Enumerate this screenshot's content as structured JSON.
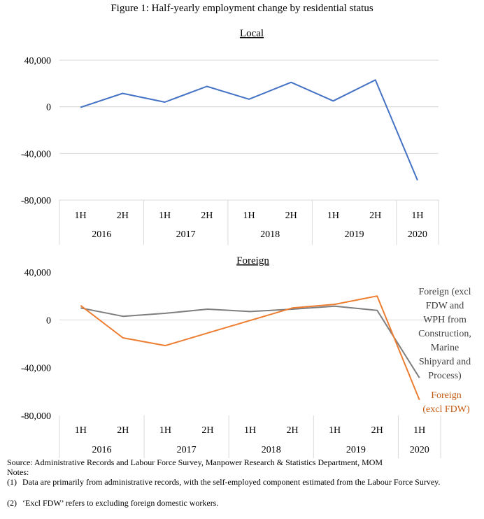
{
  "title": "Figure 1: Half-yearly employment change by residential status",
  "chart_data": [
    {
      "type": "line",
      "title": "Local",
      "categories": [
        "1H",
        "2H",
        "1H",
        "2H",
        "1H",
        "2H",
        "1H",
        "2H",
        "1H"
      ],
      "years": [
        "2016",
        "2017",
        "2018",
        "2019",
        "2020"
      ],
      "ylim": [
        -80000,
        40000
      ],
      "yticks": [
        "40,000",
        "0",
        "-40,000",
        "-80,000"
      ],
      "grid": true,
      "series": [
        {
          "values": [
            -500,
            11500,
            4000,
            17500,
            6500,
            21000,
            5000,
            23000,
            -63000
          ],
          "color": "#4472C4"
        }
      ]
    },
    {
      "type": "line",
      "title": "Foreign",
      "categories": [
        "1H",
        "2H",
        "1H",
        "2H",
        "1H",
        "2H",
        "1H",
        "2H",
        "1H"
      ],
      "years": [
        "2016",
        "2017",
        "2018",
        "2019",
        "2020"
      ],
      "ylim": [
        -80000,
        40000
      ],
      "yticks": [
        "40,000",
        "0",
        "-40,000",
        "-80,000"
      ],
      "grid": false,
      "series": [
        {
          "name": "Foreign (excl FDW and WPH from Construction, Marine Shipyard and Process)",
          "label_lines": [
            "Foreign (excl",
            "FDW and",
            "WPH from",
            "Construction,",
            "Marine",
            "Shipyard and",
            "Process)"
          ],
          "values": [
            10000,
            3000,
            5500,
            9000,
            7000,
            9000,
            11500,
            8000,
            -48500
          ],
          "color": "#7F7F7F"
        },
        {
          "name": "Foreign (excl FDW)",
          "label_lines": [
            "Foreign",
            "(excl FDW)"
          ],
          "values": [
            12000,
            -15000,
            -21500,
            -11000,
            -500,
            10000,
            13000,
            20000,
            -67000
          ],
          "color": "#ED7D31"
        }
      ]
    }
  ],
  "source": "Source: Administrative Records and Labour Force Survey, Manpower Research & Statistics Department, MOM",
  "notes_label": "Notes:",
  "notes": [
    {
      "num": "(1)",
      "text": "Data are primarily from administrative records, with the self-employed component estimated from the Labour Force Survey."
    },
    {
      "num": "(2)",
      "text": "‘Excl FDW’ refers to excluding foreign domestic workers."
    }
  ]
}
